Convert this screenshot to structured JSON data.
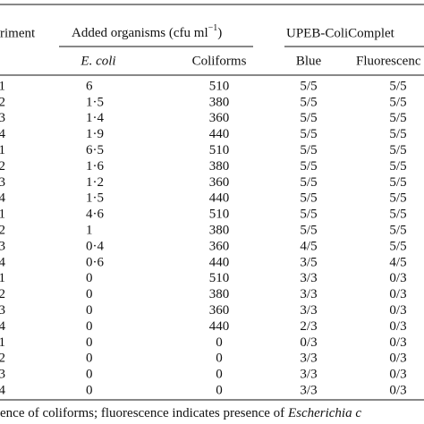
{
  "table": {
    "header": {
      "experiment": "riment",
      "added_organisms": {
        "text": "Added organisms (cfu ml",
        "sup": "−1",
        "close": ")"
      },
      "upeb": "UPEB-ColiComplet",
      "sub": [
        "E. coli",
        "Coliforms",
        "Blue",
        "Fluorescenc"
      ]
    },
    "rows": [
      [
        "1",
        "6",
        "510",
        "5/5",
        "5/5"
      ],
      [
        "2",
        "1·5",
        "380",
        "5/5",
        "5/5"
      ],
      [
        "3",
        "1·4",
        "360",
        "5/5",
        "5/5"
      ],
      [
        "4",
        "1·9",
        "440",
        "5/5",
        "5/5"
      ],
      [
        "1",
        "6·5",
        "510",
        "5/5",
        "5/5"
      ],
      [
        "2",
        "1·6",
        "380",
        "5/5",
        "5/5"
      ],
      [
        "3",
        "1·2",
        "360",
        "5/5",
        "5/5"
      ],
      [
        "4",
        "1·5",
        "440",
        "5/5",
        "5/5"
      ],
      [
        "1",
        "4·6",
        "510",
        "5/5",
        "5/5"
      ],
      [
        "2",
        "1",
        "380",
        "5/5",
        "5/5"
      ],
      [
        "3",
        "0·4",
        "360",
        "4/5",
        "5/5"
      ],
      [
        "4",
        "0·6",
        "440",
        "3/5",
        "4/5"
      ],
      [
        "1",
        "0",
        "510",
        "3/3",
        "0/3"
      ],
      [
        "2",
        "0",
        "380",
        "3/3",
        "0/3"
      ],
      [
        "3",
        "0",
        "360",
        "3/3",
        "0/3"
      ],
      [
        "4",
        "0",
        "440",
        "2/3",
        "0/3"
      ],
      [
        "1",
        "0",
        "0",
        "0/3",
        "0/3"
      ],
      [
        "2",
        "0",
        "0",
        "3/3",
        "0/3"
      ],
      [
        "3",
        "0",
        "0",
        "3/3",
        "0/3"
      ],
      [
        "4",
        "0",
        "0",
        "3/3",
        "0/3"
      ]
    ],
    "footnote": {
      "text": "ence of coliforms; fluorescence indicates presence of ",
      "italic": "Escherichia c"
    }
  }
}
